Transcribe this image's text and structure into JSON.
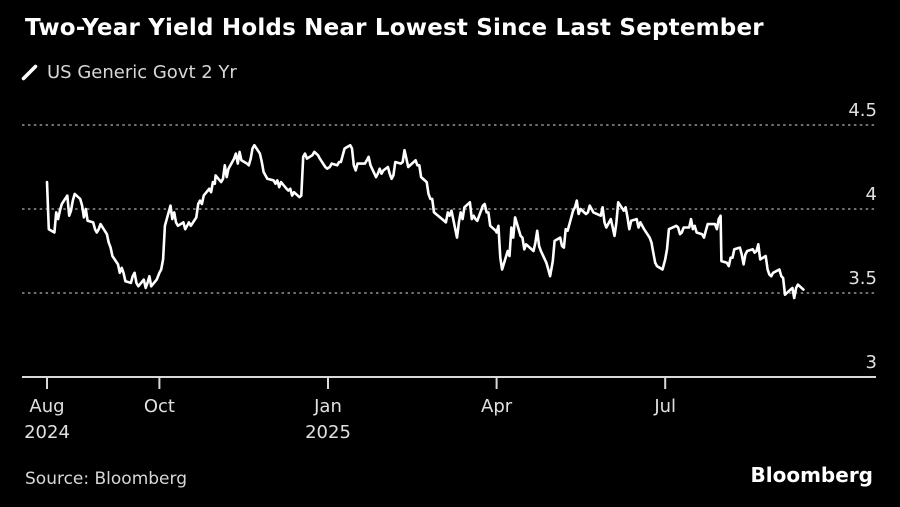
{
  "header": {
    "title": "Two-Year Yield Holds Near Lowest Since Last September"
  },
  "legend": {
    "series_label": "US Generic Govt 2 Yr"
  },
  "footer": {
    "source": "Source: Bloomberg",
    "logo": "Bloomberg"
  },
  "colors": {
    "background": "#000000",
    "line": "#ffffff",
    "grid": "#6f6f6f",
    "axis": "#d9d9d9",
    "label": "#e0e0e0",
    "title": "#ffffff"
  },
  "chart_data": {
    "type": "line",
    "title": "Two-Year Yield Holds Near Lowest Since Last September",
    "series_name": "US Generic Govt 2 Yr",
    "unit": "yield_percent",
    "ylim": [
      3.0,
      4.5
    ],
    "grid": "dotted-horizontal",
    "legend_position": "top-left",
    "y_ticks": [
      {
        "value": 4.5,
        "label": "4.5"
      },
      {
        "value": 4.0,
        "label": "4"
      },
      {
        "value": 3.5,
        "label": "3.5"
      },
      {
        "value": 3.0,
        "label": "3"
      }
    ],
    "x_ticks": [
      {
        "month_index": 0,
        "label": "Aug",
        "sublabel": "2024"
      },
      {
        "month_index": 2,
        "label": "Oct"
      },
      {
        "month_index": 5,
        "label": "Jan",
        "sublabel": "2025"
      },
      {
        "month_index": 8,
        "label": "Apr"
      },
      {
        "month_index": 11,
        "label": "Jul"
      }
    ],
    "points": [
      [
        "2024-08-01",
        4.16
      ],
      [
        "2024-08-02",
        3.88
      ],
      [
        "2024-08-05",
        3.86
      ],
      [
        "2024-08-06",
        3.98
      ],
      [
        "2024-08-07",
        3.94
      ],
      [
        "2024-08-08",
        3.99
      ],
      [
        "2024-08-09",
        4.03
      ],
      [
        "2024-08-12",
        4.08
      ],
      [
        "2024-08-13",
        3.96
      ],
      [
        "2024-08-14",
        3.99
      ],
      [
        "2024-08-15",
        4.05
      ],
      [
        "2024-08-16",
        4.09
      ],
      [
        "2024-08-19",
        4.06
      ],
      [
        "2024-08-20",
        4.02
      ],
      [
        "2024-08-21",
        3.95
      ],
      [
        "2024-08-22",
        4.0
      ],
      [
        "2024-08-23",
        3.93
      ],
      [
        "2024-08-26",
        3.92
      ],
      [
        "2024-08-27",
        3.88
      ],
      [
        "2024-08-28",
        3.86
      ],
      [
        "2024-08-29",
        3.88
      ],
      [
        "2024-08-30",
        3.91
      ],
      [
        "2024-09-03",
        3.85
      ],
      [
        "2024-09-04",
        3.8
      ],
      [
        "2024-09-05",
        3.77
      ],
      [
        "2024-09-06",
        3.72
      ],
      [
        "2024-09-09",
        3.67
      ],
      [
        "2024-09-10",
        3.62
      ],
      [
        "2024-09-11",
        3.65
      ],
      [
        "2024-09-12",
        3.62
      ],
      [
        "2024-09-13",
        3.57
      ],
      [
        "2024-09-16",
        3.56
      ],
      [
        "2024-09-17",
        3.6
      ],
      [
        "2024-09-18",
        3.62
      ],
      [
        "2024-09-19",
        3.56
      ],
      [
        "2024-09-20",
        3.54
      ],
      [
        "2024-09-23",
        3.58
      ],
      [
        "2024-09-24",
        3.53
      ],
      [
        "2024-09-25",
        3.56
      ],
      [
        "2024-09-26",
        3.6
      ],
      [
        "2024-09-27",
        3.54
      ],
      [
        "2024-09-30",
        3.58
      ],
      [
        "2024-10-01",
        3.62
      ],
      [
        "2024-10-02",
        3.64
      ],
      [
        "2024-10-03",
        3.7
      ],
      [
        "2024-10-04",
        3.9
      ],
      [
        "2024-10-07",
        4.02
      ],
      [
        "2024-10-08",
        3.94
      ],
      [
        "2024-10-09",
        3.98
      ],
      [
        "2024-10-10",
        3.92
      ],
      [
        "2024-10-11",
        3.9
      ],
      [
        "2024-10-14",
        3.92
      ],
      [
        "2024-10-15",
        3.88
      ],
      [
        "2024-10-16",
        3.9
      ],
      [
        "2024-10-17",
        3.92
      ],
      [
        "2024-10-18",
        3.9
      ],
      [
        "2024-10-21",
        3.95
      ],
      [
        "2024-10-22",
        4.03
      ],
      [
        "2024-10-23",
        4.05
      ],
      [
        "2024-10-24",
        4.03
      ],
      [
        "2024-10-25",
        4.08
      ],
      [
        "2024-10-28",
        4.12
      ],
      [
        "2024-10-29",
        4.1
      ],
      [
        "2024-10-30",
        4.16
      ],
      [
        "2024-10-31",
        4.15
      ],
      [
        "2024-11-01",
        4.2
      ],
      [
        "2024-11-04",
        4.16
      ],
      [
        "2024-11-05",
        4.18
      ],
      [
        "2024-11-06",
        4.26
      ],
      [
        "2024-11-07",
        4.19
      ],
      [
        "2024-11-08",
        4.24
      ],
      [
        "2024-11-11",
        4.3
      ],
      [
        "2024-11-12",
        4.33
      ],
      [
        "2024-11-13",
        4.27
      ],
      [
        "2024-11-14",
        4.34
      ],
      [
        "2024-11-15",
        4.29
      ],
      [
        "2024-11-18",
        4.27
      ],
      [
        "2024-11-19",
        4.26
      ],
      [
        "2024-11-20",
        4.3
      ],
      [
        "2024-11-21",
        4.36
      ],
      [
        "2024-11-22",
        4.38
      ],
      [
        "2024-11-25",
        4.33
      ],
      [
        "2024-11-26",
        4.28
      ],
      [
        "2024-11-27",
        4.22
      ],
      [
        "2024-11-29",
        4.18
      ],
      [
        "2024-12-02",
        4.17
      ],
      [
        "2024-12-03",
        4.15
      ],
      [
        "2024-12-04",
        4.17
      ],
      [
        "2024-12-05",
        4.13
      ],
      [
        "2024-12-06",
        4.16
      ],
      [
        "2024-12-09",
        4.12
      ],
      [
        "2024-12-10",
        4.11
      ],
      [
        "2024-12-11",
        4.12
      ],
      [
        "2024-12-12",
        4.08
      ],
      [
        "2024-12-13",
        4.1
      ],
      [
        "2024-12-16",
        4.07
      ],
      [
        "2024-12-17",
        4.08
      ],
      [
        "2024-12-18",
        4.31
      ],
      [
        "2024-12-19",
        4.33
      ],
      [
        "2024-12-20",
        4.3
      ],
      [
        "2024-12-23",
        4.32
      ],
      [
        "2024-12-24",
        4.34
      ],
      [
        "2024-12-26",
        4.32
      ],
      [
        "2024-12-27",
        4.3
      ],
      [
        "2024-12-30",
        4.25
      ],
      [
        "2024-12-31",
        4.24
      ],
      [
        "2025-01-02",
        4.25
      ],
      [
        "2025-01-03",
        4.27
      ],
      [
        "2025-01-06",
        4.26
      ],
      [
        "2025-01-07",
        4.28
      ],
      [
        "2025-01-08",
        4.28
      ],
      [
        "2025-01-10",
        4.36
      ],
      [
        "2025-01-13",
        4.38
      ],
      [
        "2025-01-14",
        4.36
      ],
      [
        "2025-01-15",
        4.26
      ],
      [
        "2025-01-16",
        4.23
      ],
      [
        "2025-01-17",
        4.27
      ],
      [
        "2025-01-21",
        4.27
      ],
      [
        "2025-01-22",
        4.29
      ],
      [
        "2025-01-23",
        4.31
      ],
      [
        "2025-01-24",
        4.26
      ],
      [
        "2025-01-27",
        4.19
      ],
      [
        "2025-01-28",
        4.21
      ],
      [
        "2025-01-29",
        4.24
      ],
      [
        "2025-01-30",
        4.21
      ],
      [
        "2025-01-31",
        4.23
      ],
      [
        "2025-02-03",
        4.25
      ],
      [
        "2025-02-04",
        4.21
      ],
      [
        "2025-02-05",
        4.18
      ],
      [
        "2025-02-06",
        4.2
      ],
      [
        "2025-02-07",
        4.28
      ],
      [
        "2025-02-10",
        4.27
      ],
      [
        "2025-02-11",
        4.28
      ],
      [
        "2025-02-12",
        4.35
      ],
      [
        "2025-02-13",
        4.3
      ],
      [
        "2025-02-14",
        4.25
      ],
      [
        "2025-02-18",
        4.29
      ],
      [
        "2025-02-19",
        4.26
      ],
      [
        "2025-02-20",
        4.26
      ],
      [
        "2025-02-21",
        4.19
      ],
      [
        "2025-02-24",
        4.16
      ],
      [
        "2025-02-25",
        4.09
      ],
      [
        "2025-02-26",
        4.06
      ],
      [
        "2025-02-27",
        4.06
      ],
      [
        "2025-02-28",
        3.98
      ],
      [
        "2025-03-03",
        3.93
      ],
      [
        "2025-03-04",
        3.92
      ],
      [
        "2025-03-05",
        3.98
      ],
      [
        "2025-03-06",
        3.96
      ],
      [
        "2025-03-07",
        3.99
      ],
      [
        "2025-03-10",
        3.83
      ],
      [
        "2025-03-11",
        3.92
      ],
      [
        "2025-03-12",
        3.98
      ],
      [
        "2025-03-13",
        3.94
      ],
      [
        "2025-03-14",
        4.01
      ],
      [
        "2025-03-17",
        4.04
      ],
      [
        "2025-03-18",
        3.94
      ],
      [
        "2025-03-19",
        3.96
      ],
      [
        "2025-03-20",
        3.94
      ],
      [
        "2025-03-21",
        3.93
      ],
      [
        "2025-03-24",
        4.02
      ],
      [
        "2025-03-25",
        4.03
      ],
      [
        "2025-03-26",
        3.98
      ],
      [
        "2025-03-27",
        3.98
      ],
      [
        "2025-03-28",
        3.9
      ],
      [
        "2025-03-31",
        3.87
      ],
      [
        "2025-04-01",
        3.86
      ],
      [
        "2025-04-02",
        3.9
      ],
      [
        "2025-04-03",
        3.71
      ],
      [
        "2025-04-04",
        3.64
      ],
      [
        "2025-04-07",
        3.75
      ],
      [
        "2025-04-08",
        3.72
      ],
      [
        "2025-04-09",
        3.89
      ],
      [
        "2025-04-10",
        3.83
      ],
      [
        "2025-04-11",
        3.95
      ],
      [
        "2025-04-14",
        3.84
      ],
      [
        "2025-04-15",
        3.83
      ],
      [
        "2025-04-16",
        3.76
      ],
      [
        "2025-04-17",
        3.79
      ],
      [
        "2025-04-21",
        3.75
      ],
      [
        "2025-04-22",
        3.8
      ],
      [
        "2025-04-23",
        3.87
      ],
      [
        "2025-04-24",
        3.78
      ],
      [
        "2025-04-25",
        3.75
      ],
      [
        "2025-04-28",
        3.68
      ],
      [
        "2025-04-29",
        3.64
      ],
      [
        "2025-04-30",
        3.6
      ],
      [
        "2025-05-01",
        3.69
      ],
      [
        "2025-05-02",
        3.81
      ],
      [
        "2025-05-05",
        3.83
      ],
      [
        "2025-05-06",
        3.78
      ],
      [
        "2025-05-07",
        3.77
      ],
      [
        "2025-05-08",
        3.88
      ],
      [
        "2025-05-09",
        3.87
      ],
      [
        "2025-05-12",
        3.99
      ],
      [
        "2025-05-13",
        4.01
      ],
      [
        "2025-05-14",
        4.05
      ],
      [
        "2025-05-15",
        3.97
      ],
      [
        "2025-05-16",
        4.0
      ],
      [
        "2025-05-19",
        3.97
      ],
      [
        "2025-05-20",
        3.98
      ],
      [
        "2025-05-21",
        4.02
      ],
      [
        "2025-05-22",
        4.0
      ],
      [
        "2025-05-23",
        3.98
      ],
      [
        "2025-05-27",
        3.96
      ],
      [
        "2025-05-28",
        4.01
      ],
      [
        "2025-05-29",
        3.92
      ],
      [
        "2025-05-30",
        3.89
      ],
      [
        "2025-06-02",
        3.94
      ],
      [
        "2025-06-03",
        3.89
      ],
      [
        "2025-06-04",
        3.84
      ],
      [
        "2025-06-05",
        3.92
      ],
      [
        "2025-06-06",
        4.04
      ],
      [
        "2025-06-09",
        3.99
      ],
      [
        "2025-06-10",
        4.01
      ],
      [
        "2025-06-11",
        3.95
      ],
      [
        "2025-06-12",
        3.88
      ],
      [
        "2025-06-13",
        3.93
      ],
      [
        "2025-06-16",
        3.94
      ],
      [
        "2025-06-17",
        3.89
      ],
      [
        "2025-06-18",
        3.92
      ],
      [
        "2025-06-20",
        3.88
      ],
      [
        "2025-06-23",
        3.83
      ],
      [
        "2025-06-24",
        3.8
      ],
      [
        "2025-06-25",
        3.74
      ],
      [
        "2025-06-26",
        3.68
      ],
      [
        "2025-06-27",
        3.66
      ],
      [
        "2025-06-30",
        3.64
      ],
      [
        "2025-07-01",
        3.7
      ],
      [
        "2025-07-02",
        3.76
      ],
      [
        "2025-07-03",
        3.88
      ],
      [
        "2025-07-07",
        3.9
      ],
      [
        "2025-07-08",
        3.89
      ],
      [
        "2025-07-09",
        3.85
      ],
      [
        "2025-07-10",
        3.86
      ],
      [
        "2025-07-11",
        3.89
      ],
      [
        "2025-07-14",
        3.89
      ],
      [
        "2025-07-15",
        3.94
      ],
      [
        "2025-07-16",
        3.88
      ],
      [
        "2025-07-17",
        3.9
      ],
      [
        "2025-07-18",
        3.86
      ],
      [
        "2025-07-21",
        3.85
      ],
      [
        "2025-07-22",
        3.83
      ],
      [
        "2025-07-23",
        3.87
      ],
      [
        "2025-07-24",
        3.91
      ],
      [
        "2025-07-25",
        3.91
      ],
      [
        "2025-07-28",
        3.91
      ],
      [
        "2025-07-29",
        3.88
      ],
      [
        "2025-07-30",
        3.94
      ],
      [
        "2025-07-31",
        3.96
      ],
      [
        "2025-08-01",
        3.69
      ],
      [
        "2025-08-04",
        3.68
      ],
      [
        "2025-08-05",
        3.66
      ],
      [
        "2025-08-06",
        3.71
      ],
      [
        "2025-08-07",
        3.71
      ],
      [
        "2025-08-08",
        3.76
      ],
      [
        "2025-08-11",
        3.77
      ],
      [
        "2025-08-12",
        3.73
      ],
      [
        "2025-08-13",
        3.67
      ],
      [
        "2025-08-14",
        3.73
      ],
      [
        "2025-08-15",
        3.75
      ],
      [
        "2025-08-18",
        3.76
      ],
      [
        "2025-08-19",
        3.74
      ],
      [
        "2025-08-20",
        3.75
      ],
      [
        "2025-08-21",
        3.79
      ],
      [
        "2025-08-22",
        3.7
      ],
      [
        "2025-08-25",
        3.72
      ],
      [
        "2025-08-26",
        3.64
      ],
      [
        "2025-08-27",
        3.61
      ],
      [
        "2025-08-28",
        3.6
      ],
      [
        "2025-08-29",
        3.62
      ],
      [
        "2025-09-02",
        3.64
      ],
      [
        "2025-09-03",
        3.6
      ],
      [
        "2025-09-04",
        3.59
      ],
      [
        "2025-09-05",
        3.49
      ],
      [
        "2025-09-08",
        3.52
      ],
      [
        "2025-09-09",
        3.53
      ],
      [
        "2025-09-10",
        3.47
      ],
      [
        "2025-09-11",
        3.53
      ],
      [
        "2025-09-12",
        3.55
      ],
      [
        "2025-09-15",
        3.52
      ]
    ]
  }
}
